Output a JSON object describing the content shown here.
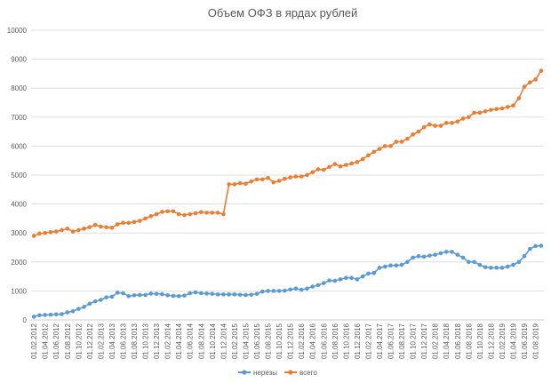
{
  "chart_data": {
    "type": "line",
    "title": "Объем ОФЗ в ярдах рублей",
    "xlabel": "",
    "ylabel": "",
    "ylim": [
      0,
      10000
    ],
    "yticks": [
      0,
      1000,
      2000,
      3000,
      4000,
      5000,
      6000,
      7000,
      8000,
      9000,
      10000
    ],
    "ytick_labels": [
      "0",
      "1000",
      "2000",
      "3000",
      "4000",
      "5000",
      "6000",
      "7000",
      "8000",
      "9000",
      "10000"
    ],
    "grid": true,
    "legend": "bottom",
    "xtick_labels": [
      "01.02.2012",
      "01.04.2012",
      "01.06.2012",
      "01.08.2012",
      "01.10.2012",
      "01.12.2012",
      "01.02.2013",
      "01.04.2013",
      "01.06.2013",
      "01.08.2013",
      "01.10.2013",
      "01.12.2013",
      "01.02.2014",
      "01.04.2014",
      "01.06.2014",
      "01.08.2014",
      "01.10.2014",
      "01.12.2014",
      "01.02.2015",
      "01.04.2015",
      "01.06.2015",
      "01.08.2015",
      "01.10.2015",
      "01.12.2015",
      "01.02.2016",
      "01.04.2016",
      "01.06.2016",
      "01.08.2016",
      "01.10.2016",
      "01.12.2016",
      "01.02.2017",
      "01.04.2017",
      "01.06.2017",
      "01.08.2017",
      "01.10.2017",
      "01.12.2017",
      "01.02.2018",
      "01.04.2018",
      "01.06.2018",
      "01.08.2018",
      "01.10.2018",
      "01.12.2018",
      "01.02.2019",
      "01.04.2019",
      "01.06.2019",
      "01.08.2019"
    ],
    "series": [
      {
        "name": "нерезы",
        "color": "#5b9bd5",
        "values": [
          110,
          160,
          170,
          180,
          190,
          200,
          260,
          300,
          380,
          450,
          560,
          640,
          690,
          780,
          800,
          940,
          920,
          820,
          850,
          860,
          860,
          910,
          900,
          890,
          850,
          830,
          820,
          840,
          920,
          950,
          920,
          910,
          900,
          880,
          880,
          880,
          880,
          870,
          860,
          870,
          900,
          980,
          1000,
          1000,
          1000,
          1010,
          1050,
          1080,
          1040,
          1080,
          1150,
          1200,
          1270,
          1360,
          1350,
          1400,
          1450,
          1450,
          1400,
          1500,
          1600,
          1620,
          1800,
          1840,
          1880,
          1880,
          1900,
          2000,
          2150,
          2200,
          2180,
          2220,
          2250,
          2300,
          2350,
          2350,
          2250,
          2150,
          2000,
          2000,
          1900,
          1820,
          1800,
          1800,
          1800,
          1840,
          1900,
          2000,
          2200,
          2450,
          2550,
          2560
        ]
      },
      {
        "name": "всего",
        "color": "#ed7d31",
        "values": [
          2900,
          2980,
          3000,
          3030,
          3050,
          3100,
          3150,
          3050,
          3100,
          3150,
          3200,
          3280,
          3220,
          3200,
          3180,
          3300,
          3350,
          3350,
          3380,
          3420,
          3500,
          3580,
          3650,
          3730,
          3750,
          3750,
          3650,
          3620,
          3650,
          3680,
          3720,
          3700,
          3700,
          3700,
          3650,
          4680,
          4680,
          4720,
          4700,
          4780,
          4850,
          4850,
          4900,
          4750,
          4800,
          4870,
          4920,
          4950,
          4950,
          5000,
          5100,
          5200,
          5180,
          5280,
          5380,
          5300,
          5350,
          5400,
          5450,
          5550,
          5680,
          5800,
          5900,
          6000,
          6000,
          6150,
          6150,
          6250,
          6400,
          6500,
          6650,
          6750,
          6700,
          6700,
          6800,
          6800,
          6850,
          6950,
          7000,
          7150,
          7150,
          7200,
          7250,
          7280,
          7300,
          7350,
          7400,
          7650,
          8050,
          8200,
          8300,
          8600
        ]
      }
    ]
  }
}
